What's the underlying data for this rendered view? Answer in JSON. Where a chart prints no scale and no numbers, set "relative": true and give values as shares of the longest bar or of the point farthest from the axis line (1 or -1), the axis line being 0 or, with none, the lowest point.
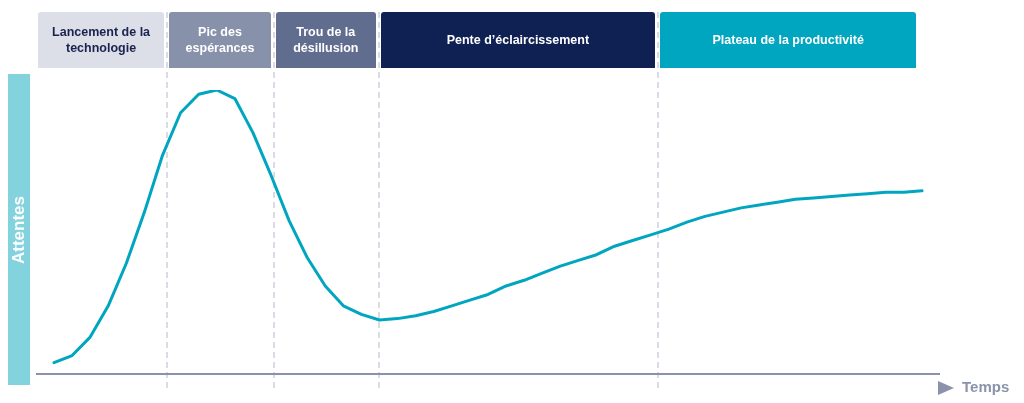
{
  "chart_data": {
    "type": "line",
    "xlabel": "Temps",
    "ylabel": "Attentes",
    "relative": true,
    "marker": "none",
    "line_style": "solid",
    "color": "#00a5bf",
    "categories": [
      null,
      null,
      null,
      null,
      null,
      null,
      null,
      null,
      null,
      null,
      null,
      null,
      null,
      null,
      null,
      null,
      null,
      null,
      null,
      null,
      null,
      null,
      null,
      null,
      null,
      null,
      null,
      null,
      null,
      null,
      null,
      null,
      null,
      null,
      null,
      null,
      null,
      null,
      null,
      null,
      null,
      null,
      null,
      null,
      null,
      null,
      null,
      null,
      null
    ],
    "values": [
      0.04,
      0.065,
      0.13,
      0.24,
      0.39,
      0.57,
      0.77,
      0.92,
      0.985,
      1.0,
      0.97,
      0.85,
      0.7,
      0.54,
      0.41,
      0.31,
      0.24,
      0.21,
      0.19,
      0.195,
      0.205,
      0.22,
      0.24,
      0.26,
      0.28,
      0.31,
      0.33,
      0.355,
      0.38,
      0.4,
      0.42,
      0.45,
      0.47,
      0.49,
      0.51,
      0.535,
      0.555,
      0.57,
      0.585,
      0.595,
      0.605,
      0.615,
      0.62,
      0.625,
      0.63,
      0.635,
      0.64,
      0.64,
      0.645
    ],
    "annotations": [
      "Lancement de la technologie",
      "Pic des espérances",
      "Trou de la désillusion",
      "Pente d’éclaircissement",
      "Plateau de la productivité"
    ]
  }
}
